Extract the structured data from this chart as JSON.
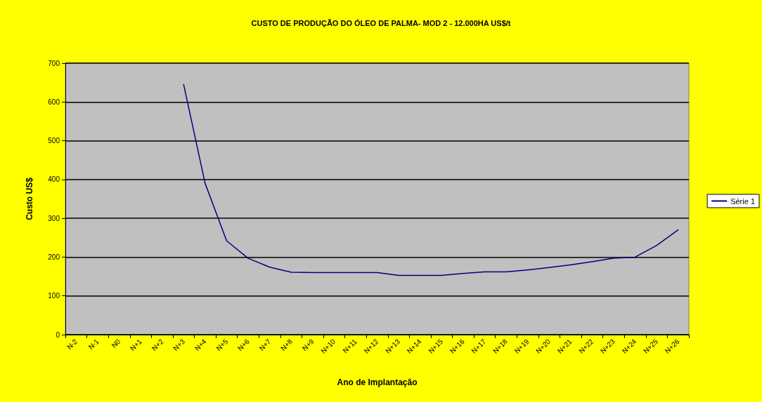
{
  "chart_data": {
    "type": "line",
    "title": "CUSTO DE PRODUÇÃO DO ÓLEO DE PALMA- MOD 2 - 12.000HA US$/t",
    "xlabel": "Ano de Implantação",
    "ylabel": "Custo US$",
    "categories": [
      "N-2",
      "N-1",
      "N0",
      "N+1",
      "N+2",
      "N+3",
      "N+4",
      "N+5",
      "N+6",
      "N+7",
      "N+8",
      "N+9",
      "N+10",
      "N+11",
      "N+12",
      "N+13",
      "N+14",
      "N+15",
      "N+16",
      "N+17",
      "N+18",
      "N+19",
      "N+20",
      "N+21",
      "N+22",
      "N+23",
      "N+24",
      "N+25",
      "N+26"
    ],
    "series": [
      {
        "name": "Série 1",
        "color": "#000080",
        "values": [
          null,
          null,
          null,
          null,
          null,
          645,
          390,
          242,
          197,
          174,
          161,
          160,
          160,
          160,
          160,
          153,
          153,
          153,
          158,
          162,
          162,
          167,
          173,
          180,
          188,
          197,
          200,
          230,
          270
        ]
      }
    ],
    "ylim": [
      0,
      700
    ],
    "yticks": [
      0,
      100,
      200,
      300,
      400,
      500,
      600,
      700
    ],
    "grid": "y",
    "legend": "right",
    "marker": "none",
    "line_style": "solid"
  }
}
